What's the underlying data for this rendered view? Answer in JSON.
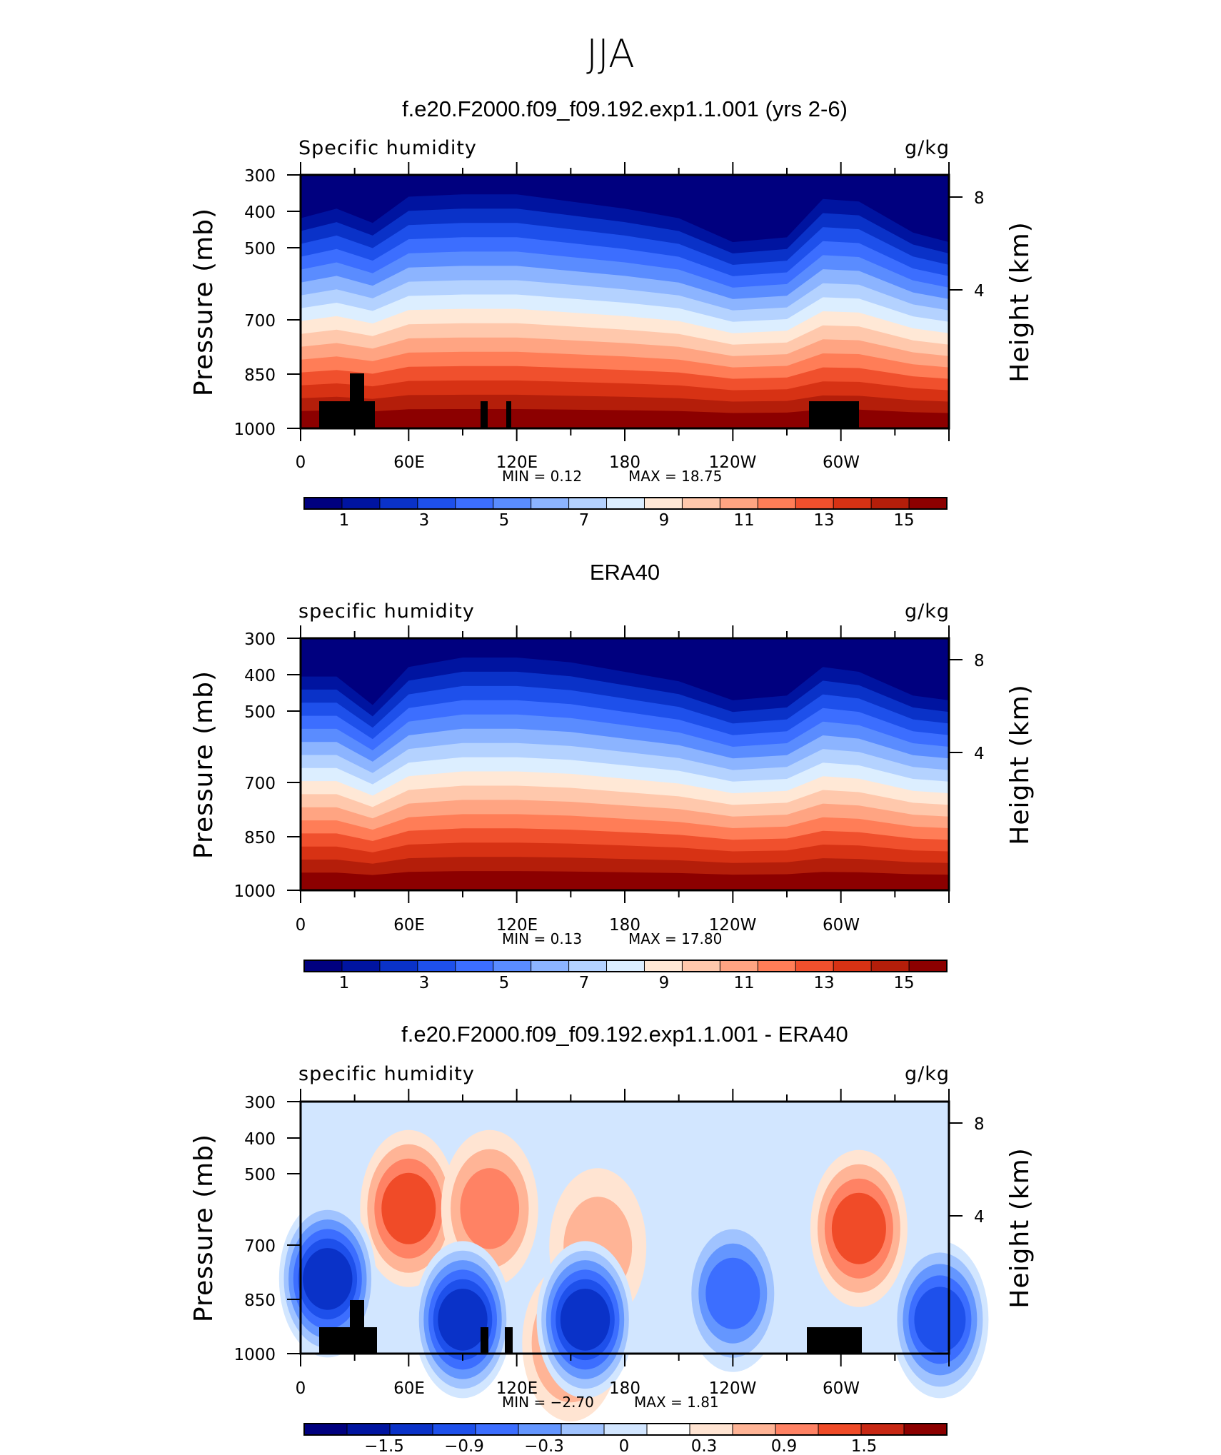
{
  "figure_title": "JJA",
  "colors": {
    "abs_levels": [
      "#00007f",
      "#0014a0",
      "#0a32c8",
      "#1e50eb",
      "#3c6eff",
      "#5a8cff",
      "#8cb4ff",
      "#b4d2ff",
      "#dceeff",
      "#ffe8d6",
      "#ffc8ac",
      "#ffa482",
      "#ff7d57",
      "#f0502d",
      "#d73214",
      "#b41e0a",
      "#8c0000"
    ],
    "diff_levels": [
      "#00007f",
      "#0014a0",
      "#0a32c8",
      "#1e50eb",
      "#3c6eff",
      "#6496ff",
      "#a0c3ff",
      "#d2e6ff",
      "#ffffff",
      "#ffe4d2",
      "#ffb496",
      "#ff8264",
      "#f04b28",
      "#c82814",
      "#8c0000"
    ]
  },
  "chart_data": [
    {
      "type": "heatmap",
      "title": "f.e20.F2000.f09_f09.192.exp1.1.001 (yrs 2-6)",
      "variable_label": "Specific humidity",
      "units": "g/kg",
      "ylabel": "Pressure (mb)",
      "ylabel_right": "Height (km)",
      "y_ticks": [
        "300",
        "400",
        "500",
        "700",
        "850",
        "1000"
      ],
      "y_right_ticks": [
        "8",
        "4"
      ],
      "x_ticks": [
        "0",
        "60E",
        "120E",
        "180",
        "120W",
        "60W"
      ],
      "min_text": "MIN =     0.12",
      "max_text": "MAX =    18.75",
      "min": 0.12,
      "max": 18.75,
      "colorbar_labels": [
        "1",
        "3",
        "5",
        "7",
        "9",
        "11",
        "13",
        "15"
      ],
      "profile": [
        {
          "lon": 0,
          "top": 0.12
        },
        {
          "lon": 20,
          "top": 0.08
        },
        {
          "lon": 40,
          "top": 0.14
        },
        {
          "lon": 60,
          "top": 0.03
        },
        {
          "lon": 90,
          "top": 0.02
        },
        {
          "lon": 120,
          "top": 0.02
        },
        {
          "lon": 150,
          "top": 0.05
        },
        {
          "lon": 180,
          "top": 0.08
        },
        {
          "lon": 210,
          "top": 0.12
        },
        {
          "lon": 240,
          "top": 0.22
        },
        {
          "lon": 270,
          "top": 0.2
        },
        {
          "lon": 290,
          "top": 0.04
        },
        {
          "lon": 310,
          "top": 0.05
        },
        {
          "lon": 340,
          "top": 0.18
        },
        {
          "lon": 360,
          "top": 0.22
        }
      ]
    },
    {
      "type": "heatmap",
      "title": "ERA40",
      "variable_label": "specific humidity",
      "units": "g/kg",
      "ylabel": "Pressure (mb)",
      "ylabel_right": "Height (km)",
      "y_ticks": [
        "300",
        "400",
        "500",
        "700",
        "850",
        "1000"
      ],
      "y_right_ticks": [
        "8",
        "4"
      ],
      "x_ticks": [
        "0",
        "60E",
        "120E",
        "180",
        "120W",
        "60W"
      ],
      "min_text": "MIN =     0.13",
      "max_text": "MAX =    17.80",
      "min": 0.13,
      "max": 17.8,
      "colorbar_labels": [
        "1",
        "3",
        "5",
        "7",
        "9",
        "11",
        "13",
        "15"
      ],
      "profile": [
        {
          "lon": 0,
          "top": 0.1
        },
        {
          "lon": 20,
          "top": 0.1
        },
        {
          "lon": 40,
          "top": 0.22
        },
        {
          "lon": 60,
          "top": 0.06
        },
        {
          "lon": 90,
          "top": 0.02
        },
        {
          "lon": 120,
          "top": 0.02
        },
        {
          "lon": 150,
          "top": 0.04
        },
        {
          "lon": 180,
          "top": 0.08
        },
        {
          "lon": 210,
          "top": 0.12
        },
        {
          "lon": 240,
          "top": 0.2
        },
        {
          "lon": 270,
          "top": 0.18
        },
        {
          "lon": 290,
          "top": 0.06
        },
        {
          "lon": 310,
          "top": 0.08
        },
        {
          "lon": 340,
          "top": 0.18
        },
        {
          "lon": 360,
          "top": 0.2
        }
      ]
    },
    {
      "type": "heatmap",
      "title": "f.e20.F2000.f09_f09.192.exp1.1.001 - ERA40",
      "variable_label": "specific humidity",
      "units": "g/kg",
      "ylabel": "Pressure (mb)",
      "ylabel_right": "Height (km)",
      "y_ticks": [
        "300",
        "400",
        "500",
        "700",
        "850",
        "1000"
      ],
      "y_right_ticks": [
        "8",
        "4"
      ],
      "x_ticks": [
        "0",
        "60E",
        "120E",
        "180",
        "120W",
        "60W"
      ],
      "min_text": "MIN =    −2.70",
      "max_text": "MAX =     1.81",
      "min": -2.7,
      "max": 1.81,
      "colorbar_labels": [
        "−1.5",
        "−0.9",
        "−0.3",
        "0",
        "0.3",
        "0.9",
        "1.5"
      ],
      "anomalies": [
        {
          "lon": 60,
          "p": 500,
          "value": 1.2
        },
        {
          "lon": 105,
          "p": 500,
          "value": 1.0
        },
        {
          "lon": 310,
          "p": 550,
          "value": 1.1
        },
        {
          "lon": 165,
          "p": 600,
          "value": 0.6
        },
        {
          "lon": 150,
          "p": 950,
          "value": 0.9
        },
        {
          "lon": 90,
          "p": 850,
          "value": -2.2
        },
        {
          "lon": 158,
          "p": 850,
          "value": -2.4
        },
        {
          "lon": 15,
          "p": 700,
          "value": -1.8
        },
        {
          "lon": 240,
          "p": 750,
          "value": -1.2
        },
        {
          "lon": 355,
          "p": 850,
          "value": -1.6
        }
      ]
    }
  ]
}
